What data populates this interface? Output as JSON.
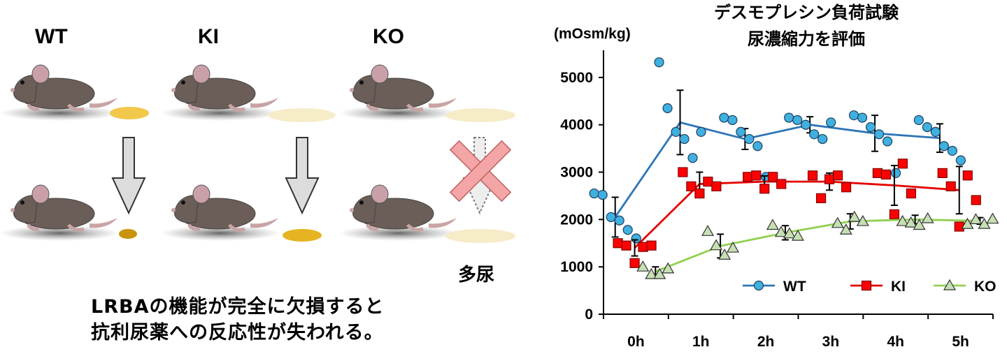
{
  "genotypes": [
    "WT",
    "KI",
    "KO"
  ],
  "polyuria_label": "多尿",
  "caption": [
    "LRBAの機能が完全に欠損すると",
    "抗利尿薬への反応性が失われる。"
  ],
  "colors": {
    "WT": "#2e75b6",
    "KI": "#e60000",
    "KO": "#92d050",
    "wt_fill": "#3fb0e0",
    "ki_fill": "#ff0000",
    "ko_fill": "#c6e0b4",
    "urine_high": "#d9a400",
    "urine_low": "#f6ecc8",
    "cross": "#f4a6a6"
  },
  "icons": [
    "mouse-icon",
    "down-arrow-icon",
    "cross-icon",
    "urine-puddle-icon"
  ],
  "chart_data": {
    "type": "line",
    "title": [
      "デスモプレシン負荷試験",
      "尿濃縮力を評価"
    ],
    "ylabel": "(mOsm/kg)",
    "xlabel": "",
    "categories": [
      "0h",
      "1h",
      "2h",
      "3h",
      "4h",
      "5h"
    ],
    "ylim": [
      0,
      5500
    ],
    "yticks": [
      0,
      1000,
      2000,
      3000,
      4000,
      5000
    ],
    "grid": false,
    "legend": "bottom",
    "series": [
      {
        "name": "WT",
        "marker": "circle",
        "mean": [
          2050,
          4050,
          3700,
          4000,
          3820,
          3720
        ],
        "sd": [
          420,
          680,
          220,
          170,
          380,
          300
        ],
        "points": [
          [
            2550,
            2520,
            2050,
            1980,
            1780,
            1600
          ],
          [
            5320,
            4350,
            3850,
            3700,
            3300,
            3850
          ],
          [
            4150,
            4100,
            3850,
            3700,
            3550,
            2900
          ],
          [
            4150,
            4100,
            4000,
            3800,
            3700,
            4050
          ],
          [
            4200,
            4150,
            3950,
            3800,
            3650,
            2980
          ],
          [
            4100,
            3950,
            3850,
            3550,
            3450,
            3250
          ]
        ]
      },
      {
        "name": "KI",
        "marker": "square",
        "mean": [
          1400,
          2750,
          2800,
          2800,
          2720,
          2620
        ],
        "sd": [
          170,
          250,
          120,
          180,
          420,
          500
        ],
        "points": [
          [
            1500,
            1450,
            1080,
            1420,
            1450
          ],
          [
            3000,
            2700,
            2550,
            2800,
            2700
          ],
          [
            2900,
            2930,
            2650,
            2900,
            2750
          ],
          [
            2930,
            2450,
            2850,
            2930,
            2680
          ],
          [
            2980,
            2950,
            2110,
            3180,
            2550
          ],
          [
            2980,
            2700,
            1850,
            2930,
            2410
          ]
        ]
      },
      {
        "name": "KO",
        "marker": "triangle",
        "mean": [
          900,
          1440,
          1720,
          1960,
          2000,
          1970
        ],
        "sd": [
          100,
          250,
          150,
          160,
          90,
          70
        ],
        "points": [
          [
            1000,
            840,
            840,
            960
          ],
          [
            1750,
            1450,
            1250,
            1400
          ],
          [
            1880,
            1730,
            1700,
            1650
          ],
          [
            1920,
            1780,
            2050,
            1960
          ],
          [
            1960,
            1930,
            1880,
            2020
          ],
          [
            1900,
            2000,
            1900,
            2010
          ]
        ]
      }
    ]
  }
}
